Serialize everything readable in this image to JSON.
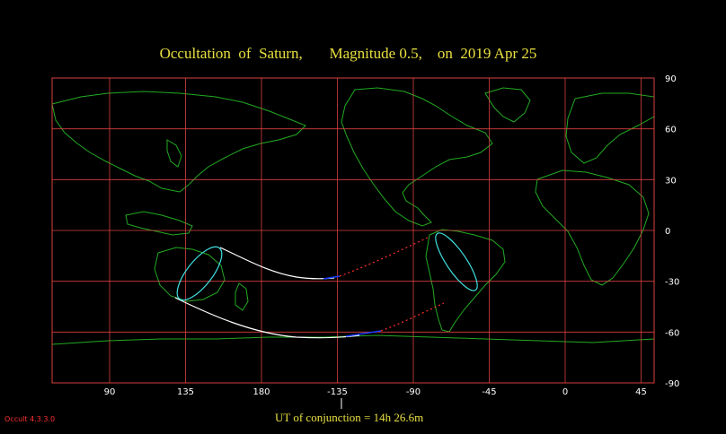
{
  "title": "Occultation  of  Saturn,       Magnitude 0.5,    on  2019 Apr 25",
  "map": {
    "lon_range": [
      60,
      90
    ],
    "lat_range": [
      -90,
      90
    ],
    "longitude_ticks": [
      "90",
      "135",
      "180",
      "-135",
      "-90",
      "-45",
      "0",
      "45"
    ],
    "latitude_ticks": [
      "90",
      "60",
      "30",
      "0",
      "-30",
      "-60",
      "-90"
    ],
    "colors": {
      "background": "#000000",
      "frame": "#d94040",
      "grid": "#d94040",
      "coastline": "#22aa22",
      "path_day": "#ffffff",
      "path_night": "#1a3cff",
      "path_below_horizon": "#ff3030",
      "limit_ellipse": "#40e0e0",
      "text": "#e8e040",
      "tick_labels": "#ffffff"
    }
  },
  "conjunction": {
    "longitude": -135,
    "label": "UT of conjunction = 14h 26.6m"
  },
  "version": "Occult 4.3.3.0"
}
